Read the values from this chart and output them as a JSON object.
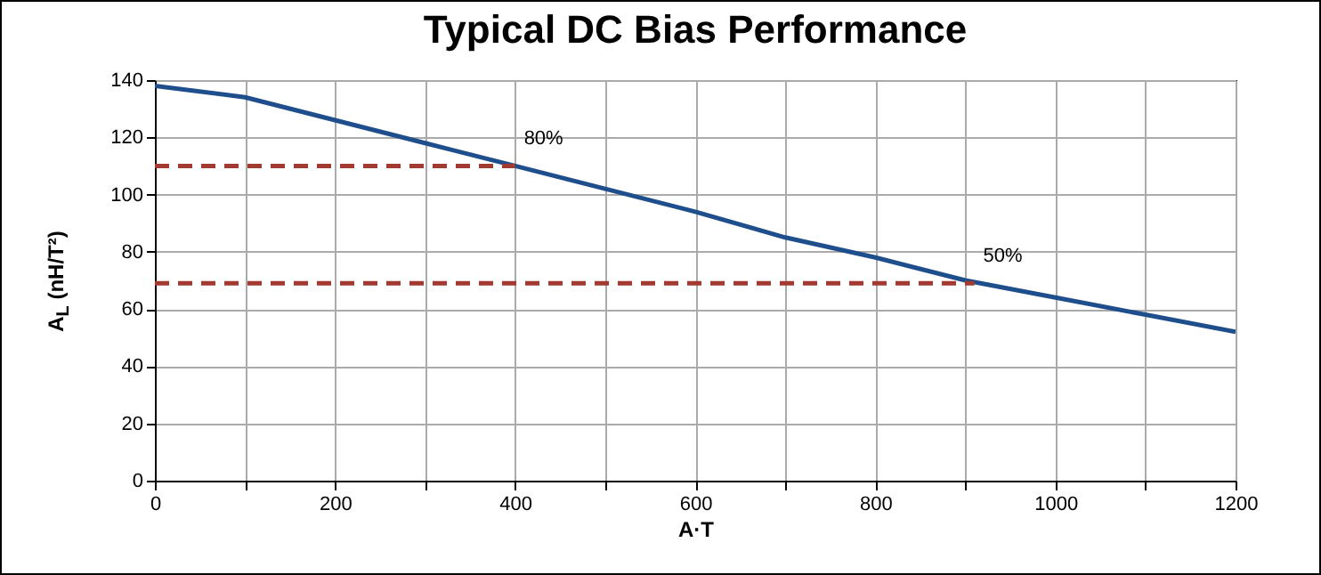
{
  "chart_data": {
    "type": "line",
    "title": "Typical DC Bias Performance",
    "xlabel": "A·T",
    "ylabel": "A$_{L}$ (nH/T²)",
    "xlim": [
      0,
      1200
    ],
    "ylim": [
      0,
      140
    ],
    "xticks": [
      0,
      {
        "value": 100,
        "label": null
      },
      200,
      {
        "value": 300,
        "label": null
      },
      400,
      {
        "value": 500,
        "label": null
      },
      600,
      {
        "value": 700,
        "label": null
      },
      800,
      {
        "value": 900,
        "label": null
      },
      1000,
      {
        "value": 1100,
        "label": null
      },
      1200
    ],
    "yticks": [
      0,
      20,
      40,
      60,
      80,
      100,
      120,
      140
    ],
    "grid": true,
    "series": [
      {
        "color": "#1f4e8c",
        "x": [
          0,
          100,
          200,
          300,
          400,
          500,
          600,
          700,
          800,
          900,
          1000,
          1100,
          1200
        ],
        "values": [
          138,
          134,
          126,
          118,
          110,
          102,
          94,
          85,
          78,
          70,
          64,
          58,
          52
        ]
      },
      {
        "type": "line",
        "color": "#a33a32",
        "line_style": "dashed",
        "x": [
          0,
          400
        ],
        "values": [
          110,
          110
        ]
      },
      {
        "type": "line",
        "color": "#a33a32",
        "line_style": "dashed",
        "x": [
          0,
          910
        ],
        "values": [
          69,
          69
        ]
      }
    ],
    "annotations": [
      {
        "text": "80%",
        "x": 400,
        "y": 110
      },
      {
        "text": "50%",
        "x": 910,
        "y": 69
      }
    ]
  }
}
